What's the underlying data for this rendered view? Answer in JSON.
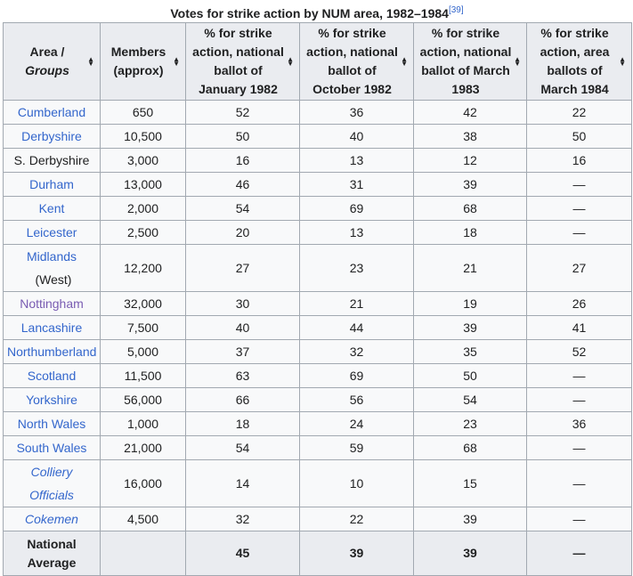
{
  "caption": {
    "title": "Votes for strike action by NUM area, 1982–1984",
    "ref": "[39]"
  },
  "headers": [
    {
      "line1": "Area /",
      "line2": "Groups"
    },
    {
      "label": "Members (approx)"
    },
    {
      "label": "% for strike action, national ballot of January 1982"
    },
    {
      "label": "% for strike action, national ballot of October 1982"
    },
    {
      "label": "% for strike action, national ballot of March 1983"
    },
    {
      "label": "% for strike action, area ballots of March 1984"
    }
  ],
  "sort_icon": "sort-up-down-icon",
  "colors": {
    "link": "#3366cc",
    "visited_link": "#795cb2",
    "header_bg": "#eaecf0",
    "row_bg": "#f8f9fa",
    "border": "#a2a9b1"
  },
  "rows": [
    {
      "area": "Cumberland",
      "style": "link",
      "members": "650",
      "jan82": "52",
      "oct82": "36",
      "mar83": "42",
      "mar84": "22"
    },
    {
      "area": "Derbyshire",
      "style": "link",
      "members": "10,500",
      "jan82": "50",
      "oct82": "40",
      "mar83": "38",
      "mar84": "50"
    },
    {
      "area": "S. Derbyshire",
      "style": "plain",
      "members": "3,000",
      "jan82": "16",
      "oct82": "13",
      "mar83": "12",
      "mar84": "16"
    },
    {
      "area": "Durham",
      "style": "link",
      "members": "13,000",
      "jan82": "46",
      "oct82": "31",
      "mar83": "39",
      "mar84": "—"
    },
    {
      "area": "Kent",
      "style": "link",
      "members": "2,000",
      "jan82": "54",
      "oct82": "69",
      "mar83": "68",
      "mar84": "—"
    },
    {
      "area": "Leicester",
      "style": "link",
      "members": "2,500",
      "jan82": "20",
      "oct82": "13",
      "mar83": "18",
      "mar84": "—"
    },
    {
      "area": "Midlands",
      "suffix": " (West)",
      "style": "link",
      "members": "12,200",
      "jan82": "27",
      "oct82": "23",
      "mar83": "21",
      "mar84": "27"
    },
    {
      "area": "Nottingham",
      "style": "visited",
      "members": "32,000",
      "jan82": "30",
      "oct82": "21",
      "mar83": "19",
      "mar84": "26"
    },
    {
      "area": "Lancashire",
      "style": "link",
      "members": "7,500",
      "jan82": "40",
      "oct82": "44",
      "mar83": "39",
      "mar84": "41"
    },
    {
      "area": "Northumberland",
      "style": "link",
      "members": "5,000",
      "jan82": "37",
      "oct82": "32",
      "mar83": "35",
      "mar84": "52"
    },
    {
      "area": "Scotland",
      "style": "link",
      "members": "11,500",
      "jan82": "63",
      "oct82": "69",
      "mar83": "50",
      "mar84": "—"
    },
    {
      "area": "Yorkshire",
      "style": "link",
      "members": "56,000",
      "jan82": "66",
      "oct82": "56",
      "mar83": "54",
      "mar84": "—"
    },
    {
      "area": "North Wales",
      "style": "link",
      "members": "1,000",
      "jan82": "18",
      "oct82": "24",
      "mar83": "23",
      "mar84": "36"
    },
    {
      "area": "South Wales",
      "style": "link",
      "members": "21,000",
      "jan82": "54",
      "oct82": "59",
      "mar83": "68",
      "mar84": "—"
    },
    {
      "area": "Colliery Officials",
      "style": "link-italic",
      "members": "16,000",
      "jan82": "14",
      "oct82": "10",
      "mar83": "15",
      "mar84": "—"
    },
    {
      "area": "Cokemen",
      "style": "link-italic",
      "members": "4,500",
      "jan82": "32",
      "oct82": "22",
      "mar83": "39",
      "mar84": "—"
    }
  ],
  "footer": {
    "line1": "National",
    "line2": "Average",
    "members": "",
    "jan82": "45",
    "oct82": "39",
    "mar83": "39",
    "mar84": "—"
  }
}
